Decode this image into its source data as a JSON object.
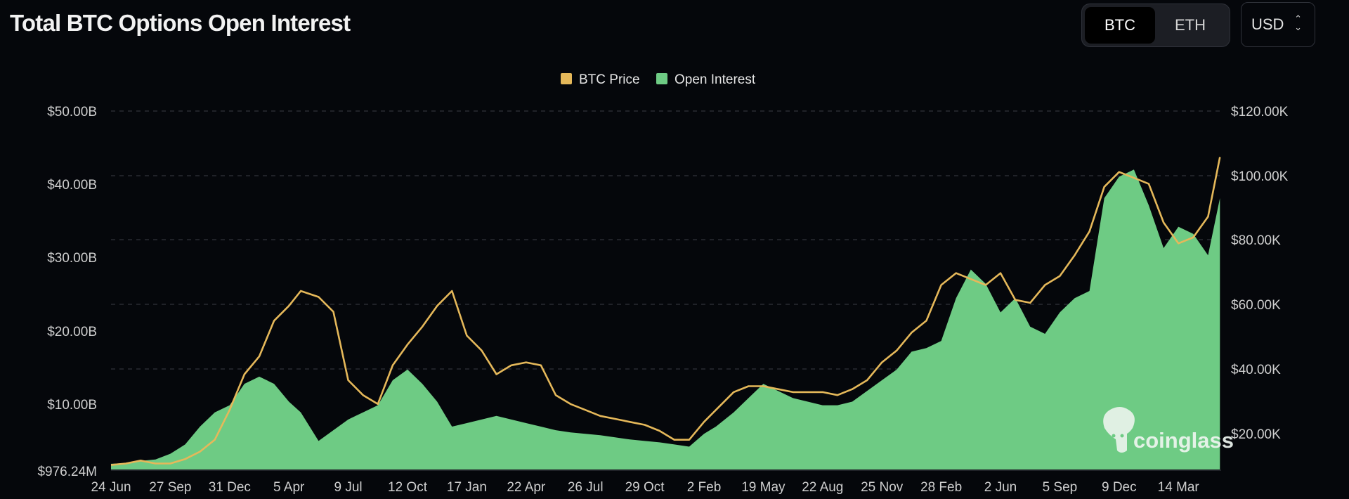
{
  "page": {
    "title": "Total BTC Options Open Interest"
  },
  "controls": {
    "coin_options": [
      "BTC",
      "ETH"
    ],
    "selected_coin": "BTC",
    "currency": "USD"
  },
  "watermark": "coinglass",
  "chart_data": {
    "type": "area",
    "title": "Total BTC Options Open Interest",
    "legend": {
      "position": "top-center",
      "items": [
        "BTC Price",
        "Open Interest"
      ]
    },
    "grid": true,
    "x_tick_labels": [
      "24 Jun",
      "27 Sep",
      "31 Dec",
      "5 Apr",
      "9 Jul",
      "12 Oct",
      "17 Jan",
      "22 Apr",
      "26 Jul",
      "29 Oct",
      "2 Feb",
      "19 May",
      "22 Aug",
      "25 Nov",
      "28 Feb",
      "2 Jun",
      "5 Sep",
      "9 Dec",
      "14 Mar"
    ],
    "y_left": {
      "ticks": [
        "$976.24M",
        "$10.00B",
        "$20.00B",
        "$30.00B",
        "$40.00B",
        "$50.00B"
      ],
      "range": [
        0,
        50
      ]
    },
    "y_right": {
      "ticks": [
        "$20.00K",
        "$40.00K",
        "$60.00K",
        "$80.00K",
        "$100.00K",
        "$120.00K"
      ],
      "range": [
        0,
        120
      ]
    },
    "series": [
      {
        "name": "Open Interest",
        "type": "area",
        "axis": "left",
        "unit": "USD billions",
        "color": "#6ecb84",
        "x": [
          0,
          0.25,
          0.5,
          0.75,
          1,
          1.25,
          1.5,
          1.75,
          2,
          2.25,
          2.5,
          2.75,
          3,
          3.2,
          3.5,
          3.75,
          4,
          4.25,
          4.5,
          4.75,
          5,
          5.25,
          5.5,
          5.75,
          6,
          6.25,
          6.5,
          6.75,
          7,
          7.25,
          7.5,
          7.75,
          8,
          8.25,
          8.5,
          8.75,
          9,
          9.25,
          9.5,
          9.75,
          10,
          10.2,
          10.5,
          10.75,
          11,
          11.25,
          11.5,
          11.75,
          12,
          12.25,
          12.5,
          12.75,
          13,
          13.25,
          13.5,
          13.75,
          14,
          14.25,
          14.5,
          14.75,
          15,
          15.25,
          15.5,
          15.75,
          16,
          16.25,
          16.5,
          16.75,
          17,
          17.25,
          17.5,
          17.75,
          18,
          18.25,
          18.5,
          18.7
        ],
        "values": [
          0.8,
          0.9,
          1.2,
          1.4,
          2.2,
          3.5,
          6,
          8,
          9,
          12,
          13,
          12,
          9.5,
          8,
          4,
          5.5,
          7,
          8,
          9,
          12.5,
          14,
          12,
          9.5,
          6,
          6.5,
          7,
          7.5,
          7,
          6.5,
          6,
          5.5,
          5.2,
          5,
          4.8,
          4.5,
          4.2,
          4,
          3.8,
          3.5,
          3.2,
          5,
          6,
          8,
          10,
          12,
          11,
          10,
          9.5,
          9,
          9,
          9.5,
          11,
          12.5,
          14,
          16.5,
          17,
          18,
          24,
          28,
          26,
          22,
          24,
          20,
          19,
          22,
          24,
          25,
          38,
          41,
          42,
          37,
          31,
          34,
          33,
          30,
          38
        ]
      },
      {
        "name": "BTC Price",
        "type": "line",
        "axis": "right",
        "unit": "USD thousands",
        "color": "#e5b85a",
        "x": [
          0,
          0.25,
          0.5,
          0.75,
          1,
          1.25,
          1.5,
          1.75,
          2,
          2.25,
          2.5,
          2.75,
          3,
          3.2,
          3.5,
          3.75,
          4,
          4.25,
          4.5,
          4.75,
          5,
          5.25,
          5.5,
          5.75,
          6,
          6.25,
          6.5,
          6.75,
          7,
          7.25,
          7.5,
          7.75,
          8,
          8.25,
          8.5,
          8.75,
          9,
          9.25,
          9.5,
          9.75,
          10,
          10.2,
          10.5,
          10.75,
          11,
          11.25,
          11.5,
          11.75,
          12,
          12.25,
          12.5,
          12.75,
          13,
          13.25,
          13.5,
          13.75,
          14,
          14.25,
          14.5,
          14.75,
          15,
          15.25,
          15.5,
          15.75,
          16,
          16.25,
          16.5,
          16.75,
          17,
          17.25,
          17.5,
          17.75,
          18,
          18.25,
          18.5,
          18.7
        ],
        "values": [
          1.5,
          2,
          3,
          2,
          2,
          3.5,
          6,
          10,
          20,
          32,
          38,
          50,
          55,
          60,
          58,
          53,
          30,
          25,
          22,
          35,
          42,
          48,
          55,
          60,
          45,
          40,
          32,
          35,
          36,
          35,
          25,
          22,
          20,
          18,
          17,
          16,
          15,
          13,
          10,
          10,
          16,
          20,
          26,
          28,
          28,
          27,
          26,
          26,
          26,
          25,
          27,
          30,
          36,
          40,
          46,
          50,
          62,
          66,
          64,
          62,
          66,
          57,
          56,
          62,
          65,
          72,
          80,
          95,
          100,
          98,
          96,
          83,
          76,
          78,
          85,
          105
        ]
      }
    ]
  }
}
